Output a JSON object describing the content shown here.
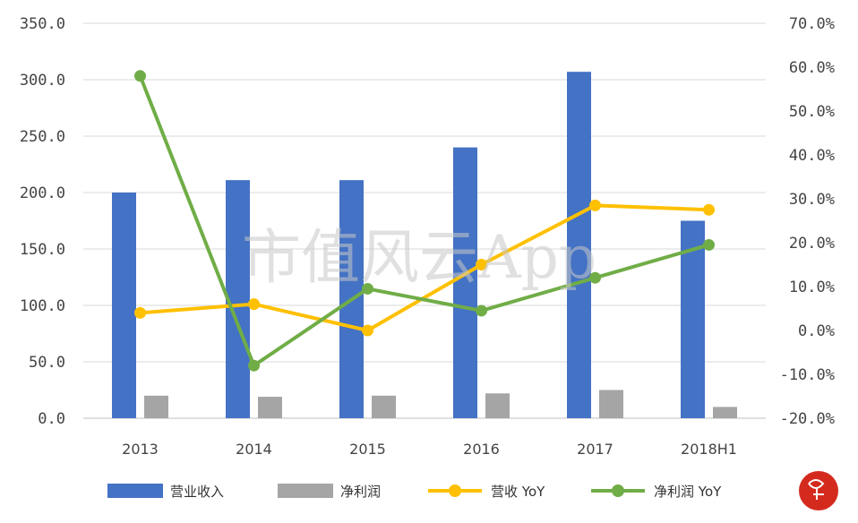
{
  "chart_data": {
    "type": "bar+line",
    "categories": [
      "2013",
      "2014",
      "2015",
      "2016",
      "2017",
      "2018H1"
    ],
    "left_axis": {
      "min": 0,
      "max": 350,
      "step": 50,
      "tick_labels": [
        "0.0",
        "50.0",
        "100.0",
        "150.0",
        "200.0",
        "250.0",
        "300.0",
        "350.0"
      ]
    },
    "right_axis": {
      "min": -20,
      "max": 70,
      "step": 10,
      "tick_labels": [
        "-20.0%",
        "-10.0%",
        "0.0%",
        "10.0%",
        "20.0%",
        "30.0%",
        "40.0%",
        "50.0%",
        "60.0%",
        "70.0%"
      ]
    },
    "series": [
      {
        "name": "营业收入",
        "type": "bar",
        "axis": "left",
        "color": "#4472c4",
        "values": [
          200,
          211,
          211,
          240,
          307,
          175
        ]
      },
      {
        "name": "净利润",
        "type": "bar",
        "axis": "left",
        "color": "#a5a5a5",
        "values": [
          20,
          19,
          20,
          22,
          25,
          10
        ]
      },
      {
        "name": "营收 YoY",
        "type": "line",
        "axis": "right",
        "color": "#ffc000",
        "values": [
          4.0,
          6.0,
          0.0,
          15.0,
          28.5,
          27.5
        ]
      },
      {
        "name": "净利润 YoY",
        "type": "line",
        "axis": "right",
        "color": "#70ad47",
        "values": [
          58.0,
          -8.0,
          9.5,
          4.5,
          12.0,
          19.5
        ]
      }
    ],
    "gridlines": true,
    "legend_position": "bottom",
    "watermark": "市值风云App"
  }
}
